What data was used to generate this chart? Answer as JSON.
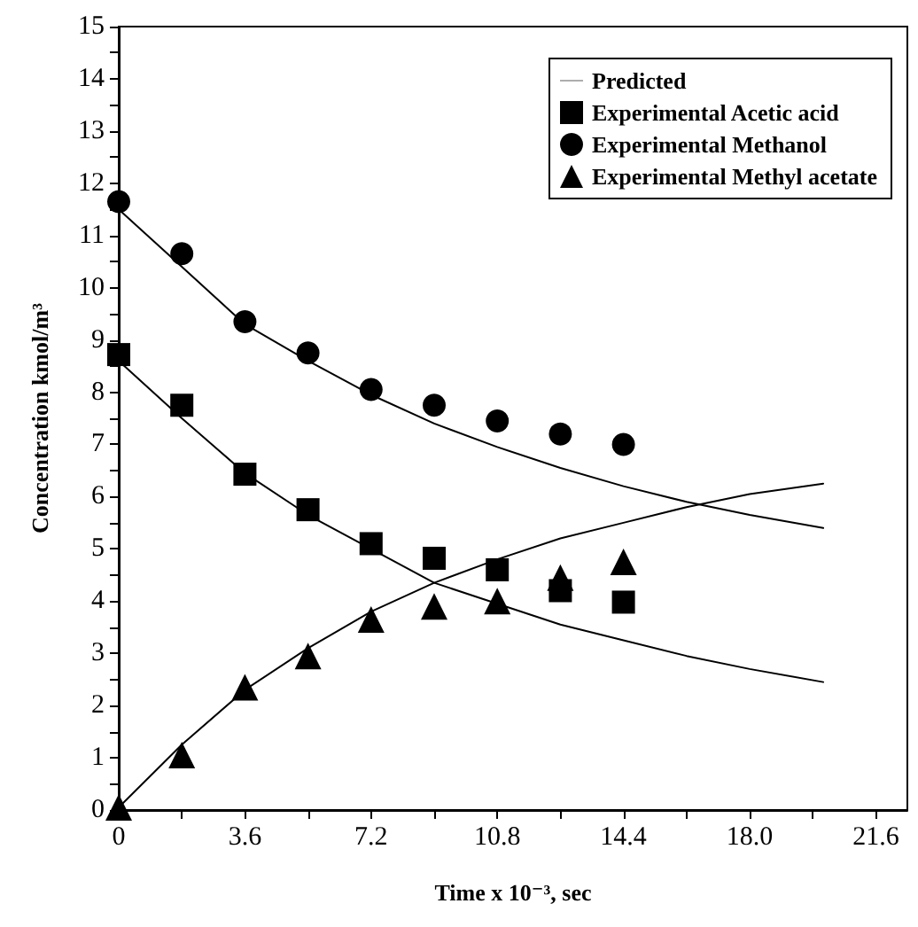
{
  "chart_data": {
    "type": "scatter",
    "xlabel": "Time x 10⁻³, sec",
    "ylabel": "Concentration kmol/m³",
    "xlim": [
      0,
      22.5
    ],
    "ylim": [
      0,
      15
    ],
    "xticks": [
      0,
      {
        "value": 1.8,
        "label": null
      },
      3.6,
      {
        "value": 5.4,
        "label": null
      },
      7.2,
      {
        "value": 9,
        "label": null
      },
      10.8,
      {
        "value": 12.6,
        "label": null
      },
      14.4,
      {
        "value": 16.2,
        "label": null
      },
      {
        "value": 18,
        "label": "18.0"
      },
      {
        "value": 19.8,
        "label": null
      },
      21.6
    ],
    "yticks": [
      0,
      {
        "value": 0.5,
        "label": null
      },
      1,
      {
        "value": 1.5,
        "label": null
      },
      2,
      {
        "value": 2.5,
        "label": null
      },
      3,
      {
        "value": 3.5,
        "label": null
      },
      4,
      {
        "value": 4.5,
        "label": null
      },
      5,
      {
        "value": 5.5,
        "label": null
      },
      6,
      {
        "value": 6.5,
        "label": null
      },
      7,
      {
        "value": 7.5,
        "label": null
      },
      8,
      {
        "value": 8.5,
        "label": null
      },
      9,
      {
        "value": 9.5,
        "label": null
      },
      10,
      {
        "value": 10.5,
        "label": null
      },
      11,
      {
        "value": 11.5,
        "label": null
      },
      12,
      {
        "value": 12.5,
        "label": null
      },
      13,
      {
        "value": 13.5,
        "label": null
      },
      14,
      {
        "value": 14.5,
        "label": null
      },
      15
    ],
    "grid": false,
    "legend": "top right",
    "series": [
      {
        "name": "Predicted",
        "type": "line",
        "marker": "none",
        "color": "#000000",
        "x": [
          0,
          1.8,
          3.6,
          5.4,
          7.2,
          9,
          10.8,
          12.6,
          14.4,
          16.2,
          18,
          20.1
        ],
        "values": [
          11.5,
          10.4,
          9.3,
          8.6,
          7.95,
          7.4,
          6.95,
          6.55,
          6.2,
          5.9,
          5.65,
          5.4
        ]
      },
      {
        "type": "line",
        "marker": "none",
        "color": "#000000",
        "x": [
          0,
          1.8,
          3.6,
          5.4,
          7.2,
          9,
          10.8,
          12.6,
          14.4,
          16.2,
          18,
          20.1
        ],
        "values": [
          8.6,
          7.5,
          6.45,
          5.65,
          5.0,
          4.35,
          3.95,
          3.55,
          3.25,
          2.95,
          2.7,
          2.45
        ]
      },
      {
        "type": "line",
        "marker": "none",
        "color": "#000000",
        "x": [
          0,
          1.8,
          3.6,
          5.4,
          7.2,
          9,
          10.8,
          12.6,
          14.4,
          16.2,
          18,
          20.1
        ],
        "values": [
          0.05,
          1.25,
          2.3,
          3.1,
          3.8,
          4.35,
          4.8,
          5.2,
          5.5,
          5.8,
          6.05,
          6.25
        ]
      },
      {
        "name": "Experimental Acetic acid",
        "marker": "square",
        "color": "#000000",
        "x": [
          0,
          1.8,
          3.6,
          5.4,
          7.2,
          9,
          10.8,
          12.6,
          14.4
        ],
        "values": [
          8.72,
          7.75,
          6.43,
          5.75,
          5.1,
          4.82,
          4.6,
          4.2,
          3.98
        ]
      },
      {
        "name": "Experimental Methanol",
        "marker": "circle",
        "color": "#000000",
        "x": [
          0,
          1.8,
          3.6,
          5.4,
          7.2,
          9,
          10.8,
          12.6,
          14.4
        ],
        "values": [
          11.65,
          10.65,
          9.35,
          8.75,
          8.05,
          7.75,
          7.45,
          7.2,
          7.0
        ]
      },
      {
        "name": "Experimental Methyl acetate",
        "marker": "triangle",
        "color": "#000000",
        "x": [
          0,
          1.8,
          3.6,
          5.4,
          7.2,
          9,
          10.8,
          12.6,
          14.4
        ],
        "values": [
          0.05,
          1.05,
          2.35,
          2.95,
          3.65,
          3.9,
          4.0,
          4.45,
          4.75
        ]
      }
    ]
  }
}
